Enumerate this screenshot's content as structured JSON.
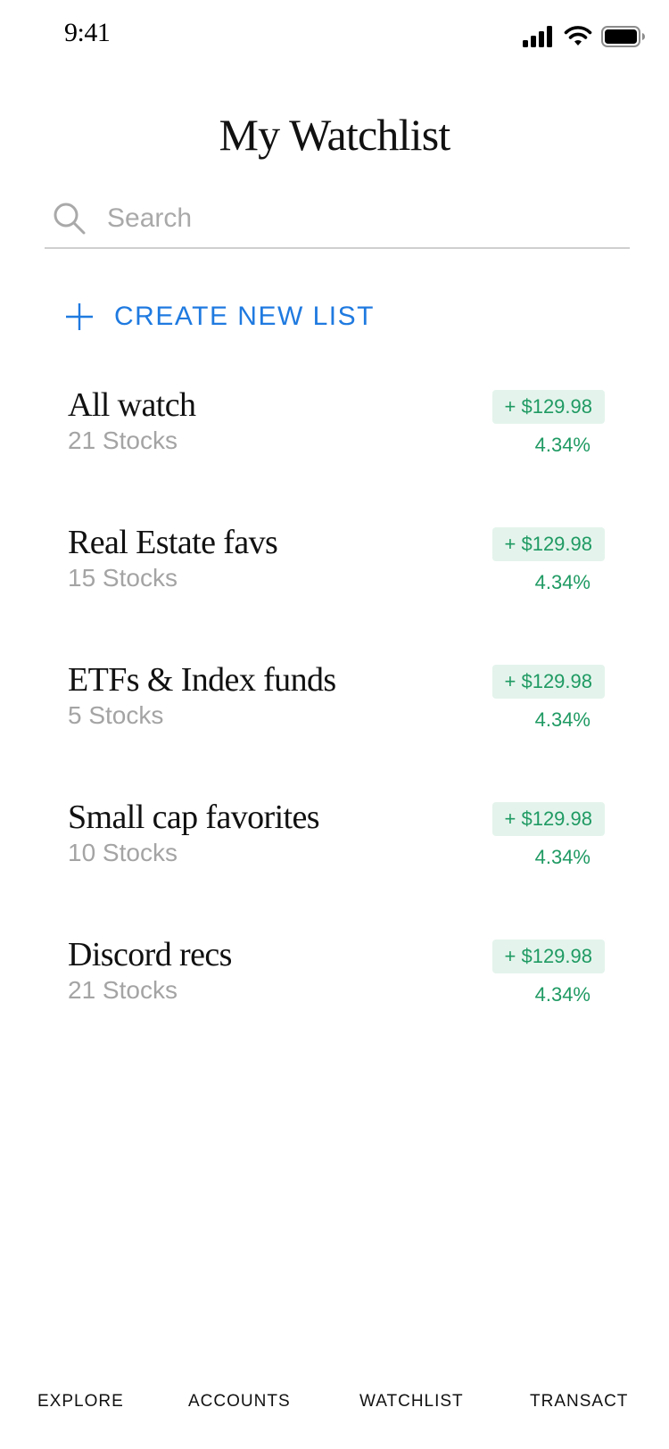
{
  "status_bar": {
    "time": "9:41"
  },
  "page": {
    "title": "My Watchlist"
  },
  "search": {
    "placeholder": "Search",
    "value": ""
  },
  "create_list": {
    "label": "CREATE NEW LIST"
  },
  "watchlists": [
    {
      "name": "All watch",
      "count": "21 Stocks",
      "change": "+ $129.98",
      "percent": "4.34%"
    },
    {
      "name": "Real Estate favs",
      "count": "15 Stocks",
      "change": "+ $129.98",
      "percent": "4.34%"
    },
    {
      "name": "ETFs & Index funds",
      "count": "5 Stocks",
      "change": "+ $129.98",
      "percent": "4.34%"
    },
    {
      "name": "Small cap favorites",
      "count": "10 Stocks",
      "change": "+ $129.98",
      "percent": "4.34%"
    },
    {
      "name": "Discord recs",
      "count": "21 Stocks",
      "change": "+ $129.98",
      "percent": "4.34%"
    }
  ],
  "tab_bar": {
    "tabs": [
      {
        "label": "EXPLORE"
      },
      {
        "label": "ACCOUNTS"
      },
      {
        "label": "WATCHLIST"
      },
      {
        "label": "TRANSACT"
      }
    ]
  },
  "colors": {
    "accent": "#1f7ae0",
    "positive": "#1f9a63",
    "positive_bg": "#e4f4ec",
    "muted_text": "#a4a4a4"
  },
  "icons": {
    "status": [
      "cellular-signal-icon",
      "wifi-icon",
      "battery-icon"
    ],
    "search": "search-icon",
    "create": "plus-icon"
  }
}
